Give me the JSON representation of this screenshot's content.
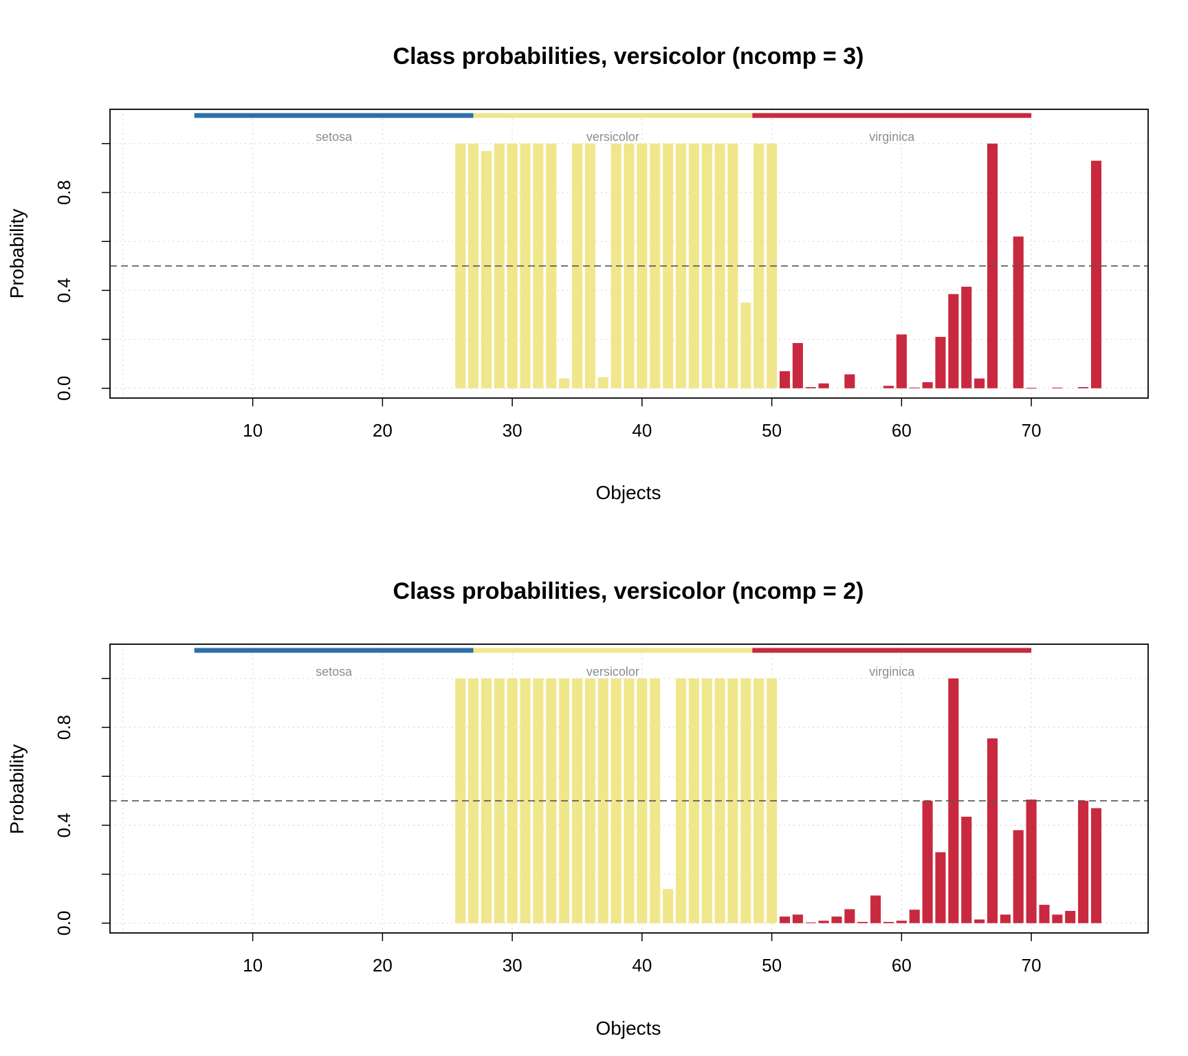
{
  "chart_data": [
    {
      "type": "bar",
      "title": "Class probabilities, versicolor (ncomp = 3)",
      "xlabel": "Objects",
      "ylabel": "Probability",
      "x": [
        1,
        2,
        3,
        4,
        5,
        6,
        7,
        8,
        9,
        10,
        11,
        12,
        13,
        14,
        15,
        16,
        17,
        18,
        19,
        20,
        21,
        22,
        23,
        24,
        25,
        26,
        27,
        28,
        29,
        30,
        31,
        32,
        33,
        34,
        35,
        36,
        37,
        38,
        39,
        40,
        41,
        42,
        43,
        44,
        45,
        46,
        47,
        48,
        49,
        50,
        51,
        52,
        53,
        54,
        55,
        56,
        57,
        58,
        59,
        60,
        61,
        62,
        63,
        64,
        65,
        66,
        67,
        68,
        69,
        70,
        71,
        72,
        73,
        74,
        75
      ],
      "values": [
        0,
        0,
        0,
        0,
        0,
        0,
        0,
        0,
        0,
        0,
        0,
        0,
        0,
        0,
        0,
        0,
        0,
        0,
        0,
        0,
        0,
        0,
        0,
        0,
        0,
        1.0,
        1.0,
        0.97,
        1.0,
        1.0,
        1.0,
        1.0,
        1.0,
        0.04,
        1.0,
        1.0,
        0.045,
        1.0,
        1.0,
        1.0,
        1.0,
        1.0,
        1.0,
        1.0,
        1.0,
        1.0,
        1.0,
        0.35,
        1.0,
        1.0,
        0.07,
        0.185,
        0.005,
        0.02,
        0,
        0.057,
        0,
        0,
        0.01,
        0.22,
        0.003,
        0.025,
        0.21,
        0.385,
        0.415,
        0.04,
        1.0,
        0,
        0.62,
        0.002,
        0,
        0.003,
        0,
        0.005,
        0.93
      ],
      "bar_colors": [
        "#F0E68C",
        "#C8293F"
      ],
      "group_colors": [
        "#2E6FAA",
        "#F0E68C",
        "#C8293F"
      ],
      "groups": [
        {
          "label": "setosa",
          "color": "#2E6FAA"
        },
        {
          "label": "versicolor",
          "color": "#F0E68C"
        },
        {
          "label": "virginica",
          "color": "#C8293F"
        }
      ],
      "threshold": 0.5,
      "xticks": [
        "10",
        "20",
        "30",
        "40",
        "50",
        "60",
        "70"
      ],
      "yticks": [
        "0.0",
        "0.4",
        "0.8"
      ],
      "xlim": [
        -1,
        79
      ],
      "ylim": [
        -0.04,
        1.14
      ],
      "grid": true,
      "legend": "none"
    },
    {
      "type": "bar",
      "title": "Class probabilities, versicolor (ncomp = 2)",
      "xlabel": "Objects",
      "ylabel": "Probability",
      "x": [
        1,
        2,
        3,
        4,
        5,
        6,
        7,
        8,
        9,
        10,
        11,
        12,
        13,
        14,
        15,
        16,
        17,
        18,
        19,
        20,
        21,
        22,
        23,
        24,
        25,
        26,
        27,
        28,
        29,
        30,
        31,
        32,
        33,
        34,
        35,
        36,
        37,
        38,
        39,
        40,
        41,
        42,
        43,
        44,
        45,
        46,
        47,
        48,
        49,
        50,
        51,
        52,
        53,
        54,
        55,
        56,
        57,
        58,
        59,
        60,
        61,
        62,
        63,
        64,
        65,
        66,
        67,
        68,
        69,
        70,
        71,
        72,
        73,
        74,
        75
      ],
      "values": [
        0,
        0,
        0,
        0,
        0,
        0,
        0,
        0,
        0,
        0,
        0,
        0,
        0,
        0,
        0,
        0,
        0,
        0,
        0,
        0,
        0,
        0,
        0,
        0,
        0,
        1.0,
        1.0,
        1.0,
        1.0,
        1.0,
        1.0,
        1.0,
        1.0,
        1.0,
        1.0,
        1.0,
        1.0,
        1.0,
        1.0,
        1.0,
        1.0,
        0.14,
        1.0,
        1.0,
        1.0,
        1.0,
        1.0,
        1.0,
        1.0,
        1.0,
        0.027,
        0.035,
        0.003,
        0.01,
        0.027,
        0.057,
        0.005,
        0.113,
        0.005,
        0.01,
        0.055,
        0.5,
        0.29,
        1.0,
        0.435,
        0.015,
        0.755,
        0.035,
        0.38,
        0.505,
        0.075,
        0.035,
        0.05,
        0.5,
        0.47
      ],
      "bar_colors": [
        "#F0E68C",
        "#C8293F"
      ],
      "group_colors": [
        "#2E6FAA",
        "#F0E68C",
        "#C8293F"
      ],
      "groups": [
        {
          "label": "setosa",
          "color": "#2E6FAA"
        },
        {
          "label": "versicolor",
          "color": "#F0E68C"
        },
        {
          "label": "virginica",
          "color": "#C8293F"
        }
      ],
      "threshold": 0.5,
      "xticks": [
        "10",
        "20",
        "30",
        "40",
        "50",
        "60",
        "70"
      ],
      "yticks": [
        "0.0",
        "0.4",
        "0.8"
      ],
      "xlim": [
        -1,
        79
      ],
      "ylim": [
        -0.04,
        1.14
      ],
      "grid": true,
      "legend": "none"
    }
  ]
}
